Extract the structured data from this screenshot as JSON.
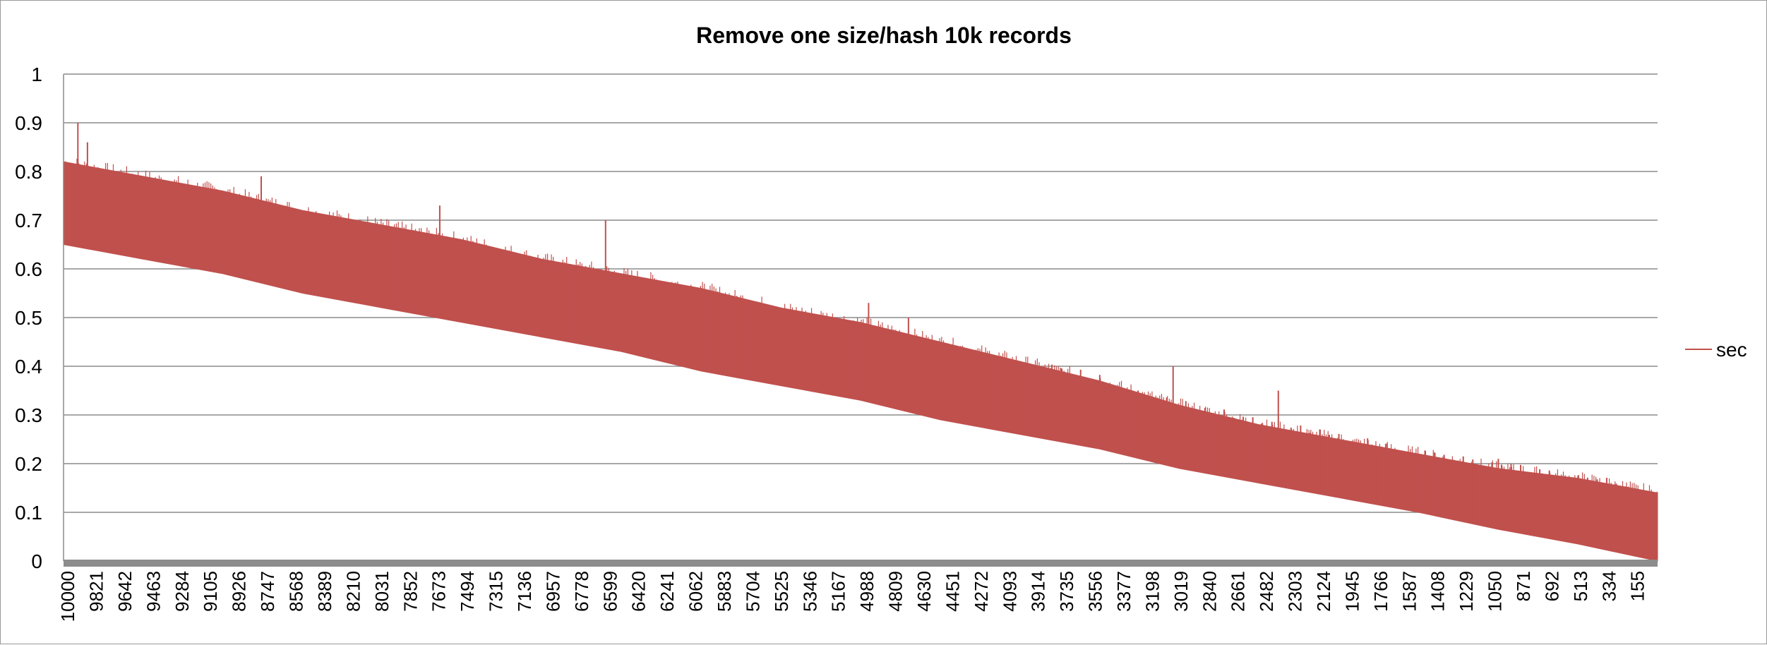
{
  "chart_data": {
    "type": "line",
    "title": "Remove one size/hash 10k records",
    "xlabel": "",
    "ylabel": "",
    "ylim": [
      0,
      1
    ],
    "y_ticks": [
      0,
      0.1,
      0.2,
      0.3,
      0.4,
      0.5,
      0.6,
      0.7,
      0.8,
      0.9,
      1
    ],
    "y_tick_labels": [
      "0",
      "0.1",
      "0.2",
      "0.3",
      "0.4",
      "0.5",
      "0.6",
      "0.7",
      "0.8",
      "0.9",
      "1"
    ],
    "x_range": [
      10000,
      1
    ],
    "x_tick_labels": [
      "10000",
      "9821",
      "9642",
      "9463",
      "9284",
      "9105",
      "8926",
      "8747",
      "8568",
      "8389",
      "8210",
      "8031",
      "7852",
      "7673",
      "7494",
      "7315",
      "7136",
      "6957",
      "6778",
      "6599",
      "6420",
      "6241",
      "6062",
      "5883",
      "5704",
      "5525",
      "5346",
      "5167",
      "4988",
      "4809",
      "4630",
      "4451",
      "4272",
      "4093",
      "3914",
      "3735",
      "3556",
      "3377",
      "3198",
      "3019",
      "2840",
      "2661",
      "2482",
      "2303",
      "2124",
      "1945",
      "1766",
      "1587",
      "1408",
      "1229",
      "1050",
      "871",
      "692",
      "513",
      "334",
      "155"
    ],
    "grid": true,
    "legend_position": "right",
    "series": [
      {
        "name": "sec",
        "color": "#c0504d",
        "x": [
          10000,
          9500,
          9000,
          8500,
          8000,
          7500,
          7000,
          6500,
          6000,
          5500,
          5000,
          4500,
          4000,
          3500,
          3000,
          2500,
          2000,
          1500,
          1000,
          500,
          1
        ],
        "y_low": [
          0.65,
          0.62,
          0.59,
          0.55,
          0.52,
          0.49,
          0.46,
          0.43,
          0.39,
          0.36,
          0.33,
          0.29,
          0.26,
          0.23,
          0.19,
          0.16,
          0.13,
          0.1,
          0.065,
          0.035,
          0.0
        ],
        "y_high": [
          0.82,
          0.79,
          0.76,
          0.72,
          0.69,
          0.66,
          0.62,
          0.59,
          0.56,
          0.52,
          0.49,
          0.45,
          0.41,
          0.37,
          0.32,
          0.28,
          0.25,
          0.22,
          0.19,
          0.17,
          0.14
        ],
        "spikes": [
          {
            "x": 9910,
            "y": 0.9
          },
          {
            "x": 9850,
            "y": 0.86
          },
          {
            "x": 8760,
            "y": 0.79
          },
          {
            "x": 7640,
            "y": 0.73
          },
          {
            "x": 6600,
            "y": 0.7
          },
          {
            "x": 4950,
            "y": 0.53
          },
          {
            "x": 4700,
            "y": 0.5
          },
          {
            "x": 3040,
            "y": 0.4
          },
          {
            "x": 2380,
            "y": 0.35
          },
          {
            "x": 150,
            "y": 0.15
          },
          {
            "x": 400,
            "y": 0.16
          },
          {
            "x": 1000,
            "y": 0.21
          }
        ]
      }
    ]
  }
}
